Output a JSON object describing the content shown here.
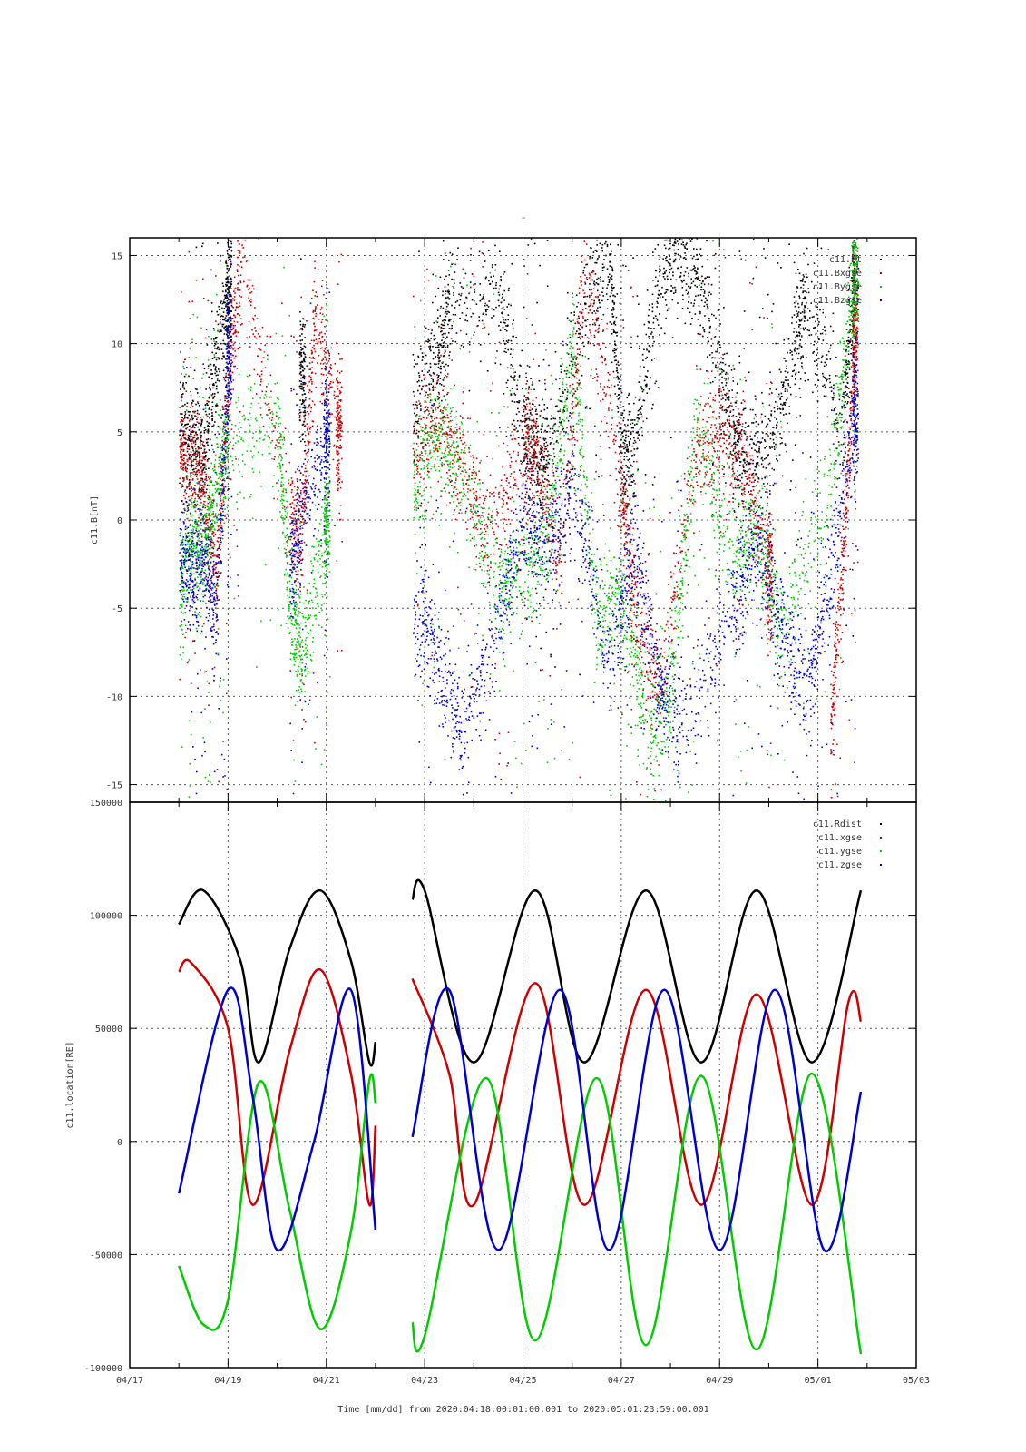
{
  "page": {
    "title_mark": "-"
  },
  "colors": {
    "Bt": "#000000",
    "Bx": "#cc0000",
    "By": "#00cc00",
    "Bz": "#0000cc",
    "grid": "#555555",
    "frame": "#000000"
  },
  "chart_data": [
    {
      "type": "scatter",
      "ylabel": "c11.B[nT]",
      "xlabel": "",
      "ylim": [
        -16,
        16
      ],
      "yticks": [
        -15,
        -10,
        -5,
        0,
        5,
        10,
        15
      ],
      "xlim": [
        "2020-04-17",
        "2020-05-03"
      ],
      "x_range_days": [
        0,
        16
      ],
      "grid": true,
      "legend_position": "top-right",
      "legend": [
        "c11.Bt",
        "c11.Bxgse",
        "c11.Bygse",
        "c11.Bzgse"
      ],
      "data_gaps": [
        [
          "2020-04-22 00:00",
          "2020-04-22 18:00"
        ]
      ],
      "series": [
        {
          "name": "c11.Bt",
          "color": "#000000",
          "points": [
            [
              "04-18 00:00",
              5.5
            ],
            [
              "04-18 06:00",
              4.5
            ],
            [
              "04-18 12:00",
              3.5
            ],
            [
              "04-18 18:00",
              9
            ],
            [
              "04-19 00:00",
              13
            ],
            [
              "04-20 12:00",
              8
            ],
            [
              "04-22 18:00",
              6
            ],
            [
              "04-23 06:00",
              9
            ],
            [
              "04-23 12:00",
              12
            ],
            [
              "04-24 12:00",
              13
            ],
            [
              "04-25 00:00",
              5
            ],
            [
              "04-25 06:00",
              4
            ],
            [
              "04-25 12:00",
              3.5
            ],
            [
              "04-26 06:00",
              12
            ],
            [
              "04-26 18:00",
              15
            ],
            [
              "04-27 00:00",
              4
            ],
            [
              "04-27 06:00",
              3.5
            ],
            [
              "04-27 18:00",
              14
            ],
            [
              "04-28 06:00",
              15
            ],
            [
              "04-28 18:00",
              12
            ],
            [
              "04-29 06:00",
              5
            ],
            [
              "04-29 12:00",
              3.5
            ],
            [
              "04-30 00:00",
              3.5
            ],
            [
              "04-30 12:00",
              10
            ],
            [
              "04-30 18:00",
              12
            ],
            [
              "05-01 12:00",
              6
            ],
            [
              "05-01 18:00",
              14
            ]
          ]
        },
        {
          "name": "c11.Bxgse",
          "color": "#cc0000",
          "points": [
            [
              "04-18 00:00",
              4
            ],
            [
              "04-18 06:00",
              3
            ],
            [
              "04-18 12:00",
              2
            ],
            [
              "04-18 18:00",
              -3
            ],
            [
              "04-19 00:00",
              8
            ],
            [
              "04-19 06:00",
              15
            ],
            [
              "04-20 06:00",
              0
            ],
            [
              "04-20 12:00",
              -1
            ],
            [
              "04-20 18:00",
              12
            ],
            [
              "04-21 06:00",
              5
            ],
            [
              "04-22 18:00",
              4
            ],
            [
              "04-23 06:00",
              6
            ],
            [
              "04-23 18:00",
              3
            ],
            [
              "04-24 06:00",
              -1
            ],
            [
              "04-25 00:00",
              4
            ],
            [
              "04-25 06:00",
              3.5
            ],
            [
              "04-25 18:00",
              -2
            ],
            [
              "04-26 06:00",
              14
            ],
            [
              "04-27 00:00",
              2
            ],
            [
              "04-27 06:00",
              -5
            ],
            [
              "04-27 18:00",
              -10
            ],
            [
              "04-28 12:00",
              4
            ],
            [
              "04-29 00:00",
              5
            ],
            [
              "04-29 12:00",
              3
            ],
            [
              "04-30 00:00",
              -3
            ],
            [
              "05-01 06:00",
              -12
            ],
            [
              "05-01 12:00",
              -2
            ],
            [
              "05-01 18:00",
              10
            ]
          ]
        },
        {
          "name": "c11.Bygse",
          "color": "#00cc00",
          "points": [
            [
              "04-18 00:00",
              -4
            ],
            [
              "04-18 06:00",
              -1
            ],
            [
              "04-18 12:00",
              -2
            ],
            [
              "04-18 18:00",
              2
            ],
            [
              "04-19 00:00",
              4
            ],
            [
              "04-20 00:00",
              6
            ],
            [
              "04-20 06:00",
              -5
            ],
            [
              "04-20 12:00",
              -8
            ],
            [
              "04-21 00:00",
              0
            ],
            [
              "04-22 18:00",
              2
            ],
            [
              "04-23 06:00",
              5
            ],
            [
              "04-23 18:00",
              3
            ],
            [
              "04-24 12:00",
              -4
            ],
            [
              "04-25 00:00",
              -3
            ],
            [
              "04-25 12:00",
              -1
            ],
            [
              "04-26 00:00",
              10
            ],
            [
              "04-26 12:00",
              -6
            ],
            [
              "04-27 00:00",
              -4
            ],
            [
              "04-27 12:00",
              -12
            ],
            [
              "04-28 00:00",
              -10
            ],
            [
              "04-28 12:00",
              5
            ],
            [
              "04-29 06:00",
              -2
            ],
            [
              "04-29 18:00",
              -1
            ],
            [
              "04-30 06:00",
              -6
            ],
            [
              "05-01 06:00",
              2
            ],
            [
              "05-01 18:00",
              14
            ]
          ]
        },
        {
          "name": "c11.Bzgse",
          "color": "#0000cc",
          "points": [
            [
              "04-18 00:00",
              -2
            ],
            [
              "04-18 06:00",
              -3
            ],
            [
              "04-18 12:00",
              -2
            ],
            [
              "04-18 18:00",
              -5
            ],
            [
              "04-19 00:00",
              9
            ],
            [
              "04-20 06:00",
              -3
            ],
            [
              "04-20 12:00",
              0
            ],
            [
              "04-21 00:00",
              5
            ],
            [
              "04-22 18:00",
              -5
            ],
            [
              "04-23 06:00",
              -8
            ],
            [
              "04-23 18:00",
              -12
            ],
            [
              "04-24 12:00",
              -6
            ],
            [
              "04-25 00:00",
              0
            ],
            [
              "04-25 12:00",
              -2
            ],
            [
              "04-26 00:00",
              2
            ],
            [
              "04-26 18:00",
              -8
            ],
            [
              "04-27 06:00",
              -2
            ],
            [
              "04-27 18:00",
              -9
            ],
            [
              "04-28 06:00",
              -12
            ],
            [
              "04-29 06:00",
              -5
            ],
            [
              "04-29 18:00",
              -1
            ],
            [
              "04-30 06:00",
              -6
            ],
            [
              "04-30 18:00",
              -10
            ],
            [
              "05-01 06:00",
              -3
            ],
            [
              "05-01 18:00",
              6
            ]
          ]
        }
      ]
    },
    {
      "type": "line",
      "ylabel": "c11.location[RE]",
      "xlabel": "Time [mm/dd]  from 2020:04:18:00:01:00.001  to  2020:05:01:23:59:00.001",
      "ylim": [
        -100000,
        150000
      ],
      "yticks": [
        -100000,
        -50000,
        0,
        50000,
        100000,
        150000
      ],
      "xlim": [
        "2020-04-17",
        "2020-05-03"
      ],
      "xticks": [
        "04/17",
        "04/19",
        "04/21",
        "04/23",
        "04/25",
        "04/27",
        "04/29",
        "05/01",
        "05/03"
      ],
      "grid": true,
      "legend_position": "top-right",
      "legend": [
        "c11.Rdist",
        "c11.xgse",
        "c11.ygse",
        "c11.zgse"
      ],
      "data_gaps": [
        [
          "2020-04-22 00:00",
          "2020-04-22 18:00"
        ]
      ],
      "series": [
        {
          "name": "c11.Rdist",
          "color": "#000000",
          "points": [
            [
              "04-18 00:00",
              96000
            ],
            [
              "04-18 12:00",
              111000
            ],
            [
              "04-19 06:00",
              80000
            ],
            [
              "04-19 15:00",
              35000
            ],
            [
              "04-20 06:00",
              85000
            ],
            [
              "04-20 21:00",
              111000
            ],
            [
              "04-21 12:00",
              80000
            ],
            [
              "04-21 21:00",
              35000
            ],
            [
              "04-22 00:00",
              44000
            ],
            [
              "04-22 18:00",
              107000
            ],
            [
              "04-23 00:00",
              111000
            ],
            [
              "04-24 00:00",
              35000
            ],
            [
              "04-25 06:00",
              111000
            ],
            [
              "04-26 06:00",
              35000
            ],
            [
              "04-27 12:00",
              111000
            ],
            [
              "04-28 15:00",
              35000
            ],
            [
              "04-29 18:00",
              111000
            ],
            [
              "04-30 21:00",
              35000
            ],
            [
              "05-01 21:00",
              111000
            ]
          ]
        },
        {
          "name": "c11.xgse",
          "color": "#cc0000",
          "points": [
            [
              "04-18 00:00",
              75000
            ],
            [
              "04-18 06:00",
              79000
            ],
            [
              "04-19 00:00",
              50000
            ],
            [
              "04-19 12:00",
              -28000
            ],
            [
              "04-20 06:00",
              40000
            ],
            [
              "04-20 21:00",
              76000
            ],
            [
              "04-21 12:00",
              30000
            ],
            [
              "04-21 21:00",
              -28000
            ],
            [
              "04-22 00:00",
              7000
            ],
            [
              "04-22 18:00",
              72000
            ],
            [
              "04-23 12:00",
              30000
            ],
            [
              "04-24 00:00",
              -28000
            ],
            [
              "04-25 06:00",
              70000
            ],
            [
              "04-26 06:00",
              -28000
            ],
            [
              "04-27 12:00",
              67000
            ],
            [
              "04-28 15:00",
              -28000
            ],
            [
              "04-29 18:00",
              65000
            ],
            [
              "04-30 21:00",
              -28000
            ],
            [
              "05-01 15:00",
              62000
            ],
            [
              "05-01 21:00",
              53000
            ]
          ]
        },
        {
          "name": "c11.ygse",
          "color": "#00cc00",
          "points": [
            [
              "04-18 00:00",
              -55000
            ],
            [
              "04-18 12:00",
              -81000
            ],
            [
              "04-19 00:00",
              -70000
            ],
            [
              "04-19 15:00",
              26000
            ],
            [
              "04-20 06:00",
              -30000
            ],
            [
              "04-20 21:00",
              -83000
            ],
            [
              "04-21 12:00",
              -40000
            ],
            [
              "04-21 21:00",
              27000
            ],
            [
              "04-22 00:00",
              17000
            ],
            [
              "04-22 18:00",
              -80000
            ],
            [
              "04-23 00:00",
              -86000
            ],
            [
              "04-24 06:00",
              28000
            ],
            [
              "04-25 06:00",
              -88000
            ],
            [
              "04-26 12:00",
              28000
            ],
            [
              "04-27 12:00",
              -90000
            ],
            [
              "04-28 15:00",
              29000
            ],
            [
              "04-29 18:00",
              -92000
            ],
            [
              "04-30 21:00",
              30000
            ],
            [
              "05-01 21:00",
              -94000
            ]
          ]
        },
        {
          "name": "c11.zgse",
          "color": "#0000cc",
          "points": [
            [
              "04-18 00:00",
              -23000
            ],
            [
              "04-19 00:00",
              67000
            ],
            [
              "04-19 12:00",
              20000
            ],
            [
              "04-20 00:00",
              -48000
            ],
            [
              "04-20 18:00",
              0
            ],
            [
              "04-21 12:00",
              67000
            ],
            [
              "04-22 00:00",
              -39000
            ],
            [
              "04-22 18:00",
              2000
            ],
            [
              "04-23 12:00",
              67000
            ],
            [
              "04-24 12:00",
              -48000
            ],
            [
              "04-25 18:00",
              67000
            ],
            [
              "04-26 18:00",
              -48000
            ],
            [
              "04-27 21:00",
              67000
            ],
            [
              "04-29 00:00",
              -48000
            ],
            [
              "04-30 03:00",
              67000
            ],
            [
              "05-01 03:00",
              -48000
            ],
            [
              "05-01 21:00",
              22000
            ]
          ]
        }
      ]
    }
  ]
}
